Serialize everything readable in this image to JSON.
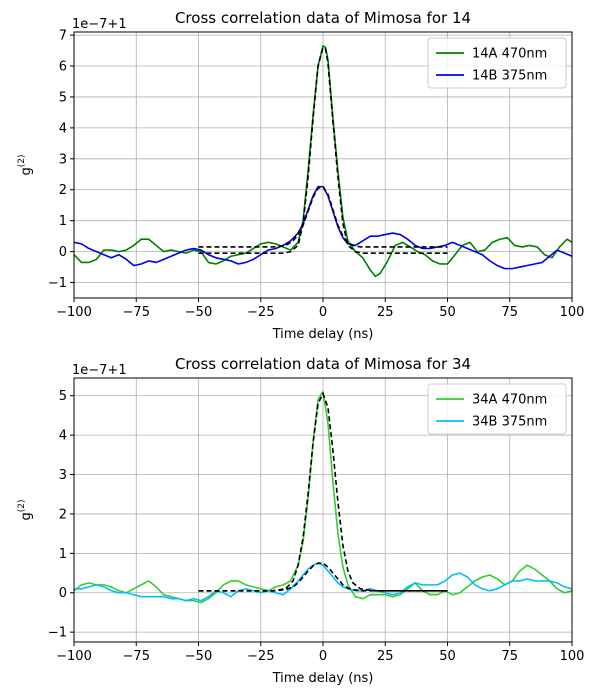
{
  "chart_data": [
    {
      "type": "line",
      "title": "Cross correlation data of Mimosa for 14",
      "xlabel": "Time delay (ns)",
      "ylabel": "g(2)",
      "offset_text": "1e−7+1",
      "xlim": [
        -100,
        100
      ],
      "ylim": [
        -1.5,
        7.1
      ],
      "xticks": [
        -100,
        -75,
        -50,
        -25,
        0,
        25,
        50,
        75,
        100
      ],
      "yticks": [
        -1,
        0,
        1,
        2,
        3,
        4,
        5,
        6,
        7
      ],
      "grid": true,
      "legend_position": "top-right",
      "series": [
        {
          "name": "14A 470nm",
          "color": "#008000",
          "x": [
            -100,
            -97,
            -94,
            -91,
            -88,
            -85,
            -82,
            -79,
            -76,
            -73,
            -70,
            -67,
            -64,
            -61,
            -58,
            -55,
            -52,
            -49,
            -46,
            -43,
            -40,
            -37,
            -34,
            -31,
            -28,
            -25,
            -22,
            -19,
            -16,
            -13,
            -10,
            -8,
            -6,
            -4,
            -2,
            0,
            1,
            2,
            4,
            6,
            8,
            10,
            13,
            16,
            19,
            21,
            23,
            26,
            29,
            32,
            35,
            38,
            41,
            44,
            47,
            50,
            53,
            56,
            59,
            62,
            65,
            68,
            71,
            74,
            77,
            80,
            83,
            86,
            89,
            92,
            95,
            98,
            100
          ],
          "y": [
            -0.1,
            -0.35,
            -0.35,
            -0.25,
            0.05,
            0.05,
            0.0,
            0.05,
            0.2,
            0.4,
            0.4,
            0.2,
            0.0,
            0.05,
            0.0,
            -0.05,
            0.05,
            0.0,
            -0.35,
            -0.4,
            -0.3,
            -0.15,
            -0.1,
            -0.05,
            0.1,
            0.25,
            0.3,
            0.25,
            0.15,
            0.05,
            0.3,
            1.0,
            2.6,
            4.4,
            6.0,
            6.65,
            6.6,
            6.2,
            4.3,
            2.6,
            1.1,
            0.35,
            0.0,
            -0.2,
            -0.6,
            -0.8,
            -0.7,
            -0.3,
            0.2,
            0.3,
            0.15,
            0.0,
            -0.1,
            -0.3,
            -0.4,
            -0.4,
            -0.1,
            0.2,
            0.3,
            0.0,
            0.05,
            0.3,
            0.4,
            0.45,
            0.2,
            0.15,
            0.2,
            0.15,
            -0.1,
            -0.2,
            0.15,
            0.4,
            0.3
          ]
        },
        {
          "name": "14B 375nm",
          "color": "#0000ee",
          "x": [
            -100,
            -97,
            -94,
            -91,
            -88,
            -85,
            -82,
            -79,
            -76,
            -73,
            -70,
            -67,
            -64,
            -61,
            -58,
            -55,
            -52,
            -49,
            -46,
            -43,
            -40,
            -37,
            -34,
            -31,
            -28,
            -25,
            -22,
            -19,
            -16,
            -13,
            -10,
            -8,
            -6,
            -4,
            -2,
            0,
            2,
            4,
            6,
            8,
            10,
            13,
            16,
            19,
            22,
            25,
            28,
            31,
            34,
            37,
            40,
            43,
            46,
            49,
            52,
            55,
            58,
            61,
            64,
            67,
            70,
            73,
            76,
            79,
            82,
            85,
            88,
            91,
            94,
            97,
            100
          ],
          "y": [
            0.3,
            0.25,
            0.1,
            0.0,
            -0.1,
            -0.2,
            -0.1,
            -0.25,
            -0.45,
            -0.4,
            -0.3,
            -0.35,
            -0.25,
            -0.15,
            -0.05,
            0.05,
            0.1,
            0.05,
            -0.1,
            -0.2,
            -0.25,
            -0.3,
            -0.4,
            -0.35,
            -0.25,
            -0.1,
            0.05,
            0.1,
            0.2,
            0.35,
            0.6,
            0.9,
            1.35,
            1.8,
            2.1,
            2.1,
            1.8,
            1.3,
            0.8,
            0.45,
            0.25,
            0.2,
            0.35,
            0.5,
            0.5,
            0.55,
            0.6,
            0.55,
            0.4,
            0.2,
            0.1,
            0.1,
            0.15,
            0.2,
            0.3,
            0.2,
            0.1,
            0.0,
            -0.1,
            -0.3,
            -0.45,
            -0.55,
            -0.55,
            -0.5,
            -0.45,
            -0.4,
            -0.35,
            -0.15,
            0.05,
            -0.05,
            -0.15
          ]
        }
      ],
      "fit_lines": [
        {
          "color": "#000000",
          "dash": true,
          "x": [
            -50,
            -20,
            -16,
            -13,
            -10,
            -8,
            -6,
            -4,
            -2,
            0,
            1,
            2,
            4,
            6,
            8,
            10,
            13,
            16,
            20,
            50
          ],
          "y": [
            -0.05,
            -0.05,
            -0.05,
            0.0,
            0.2,
            0.9,
            2.4,
            4.3,
            6.0,
            6.6,
            6.55,
            6.1,
            4.2,
            2.4,
            0.9,
            0.2,
            0.0,
            -0.05,
            -0.05,
            -0.05
          ]
        },
        {
          "color": "#000000",
          "dash": true,
          "x": [
            -50,
            -20,
            -15,
            -12,
            -10,
            -8,
            -6,
            -4,
            -2,
            0,
            2,
            4,
            6,
            8,
            10,
            12,
            15,
            20,
            50
          ],
          "y": [
            0.15,
            0.15,
            0.2,
            0.35,
            0.55,
            0.85,
            1.3,
            1.75,
            2.05,
            2.1,
            1.85,
            1.35,
            0.85,
            0.5,
            0.3,
            0.2,
            0.15,
            0.15,
            0.15
          ]
        }
      ]
    },
    {
      "type": "line",
      "title": "Cross correlation data of Mimosa for 34",
      "xlabel": "Time delay (ns)",
      "ylabel": "g(2)",
      "offset_text": "1e−7+1",
      "xlim": [
        -100,
        100
      ],
      "ylim": [
        -1.25,
        5.45
      ],
      "xticks": [
        -100,
        -75,
        -50,
        -25,
        0,
        25,
        50,
        75,
        100
      ],
      "yticks": [
        -1,
        0,
        1,
        2,
        3,
        4,
        5
      ],
      "grid": true,
      "legend_position": "top-right",
      "series": [
        {
          "name": "34A 470nm",
          "color": "#32cd32",
          "x": [
            -100,
            -97,
            -94,
            -91,
            -88,
            -85,
            -82,
            -79,
            -76,
            -73,
            -70,
            -67,
            -64,
            -61,
            -58,
            -55,
            -52,
            -49,
            -46,
            -43,
            -40,
            -37,
            -34,
            -31,
            -28,
            -25,
            -22,
            -19,
            -16,
            -13,
            -10,
            -8,
            -6,
            -4,
            -2,
            0,
            2,
            4,
            6,
            8,
            10,
            13,
            16,
            19,
            22,
            25,
            28,
            31,
            34,
            37,
            40,
            43,
            46,
            49,
            52,
            55,
            58,
            61,
            64,
            67,
            70,
            73,
            76,
            79,
            82,
            85,
            88,
            91,
            94,
            97,
            100
          ],
          "y": [
            0.05,
            0.2,
            0.25,
            0.2,
            0.2,
            0.15,
            0.05,
            0.0,
            0.1,
            0.2,
            0.3,
            0.15,
            -0.05,
            -0.1,
            -0.15,
            -0.2,
            -0.2,
            -0.25,
            -0.15,
            0.0,
            0.2,
            0.3,
            0.3,
            0.2,
            0.15,
            0.1,
            0.05,
            0.15,
            0.2,
            0.3,
            0.7,
            1.3,
            2.4,
            3.8,
            4.9,
            5.1,
            4.3,
            2.8,
            1.5,
            0.65,
            0.2,
            -0.1,
            -0.15,
            -0.05,
            -0.05,
            -0.05,
            -0.1,
            -0.05,
            0.1,
            0.25,
            0.05,
            -0.05,
            -0.05,
            0.05,
            -0.05,
            0.0,
            0.15,
            0.3,
            0.4,
            0.45,
            0.35,
            0.2,
            0.3,
            0.55,
            0.7,
            0.6,
            0.45,
            0.3,
            0.1,
            0.0,
            0.05
          ]
        },
        {
          "name": "34B 375nm",
          "color": "#00bfff",
          "x": [
            -100,
            -97,
            -94,
            -91,
            -88,
            -85,
            -82,
            -79,
            -76,
            -73,
            -70,
            -67,
            -64,
            -61,
            -58,
            -55,
            -52,
            -49,
            -46,
            -43,
            -40,
            -37,
            -34,
            -31,
            -28,
            -25,
            -22,
            -19,
            -16,
            -13,
            -10,
            -8,
            -6,
            -4,
            -2,
            0,
            2,
            4,
            6,
            8,
            10,
            13,
            16,
            19,
            22,
            25,
            28,
            31,
            34,
            37,
            40,
            43,
            46,
            49,
            52,
            55,
            58,
            61,
            64,
            67,
            70,
            73,
            76,
            79,
            82,
            85,
            88,
            91,
            94,
            97,
            100
          ],
          "y": [
            0.1,
            0.1,
            0.15,
            0.2,
            0.15,
            0.05,
            0.0,
            0.0,
            -0.05,
            -0.1,
            -0.1,
            -0.1,
            -0.1,
            -0.15,
            -0.15,
            -0.2,
            -0.15,
            -0.2,
            -0.1,
            0.05,
            0.0,
            -0.1,
            0.05,
            0.1,
            0.05,
            0.0,
            0.05,
            0.0,
            -0.05,
            0.1,
            0.3,
            0.45,
            0.6,
            0.7,
            0.75,
            0.7,
            0.55,
            0.4,
            0.25,
            0.15,
            0.1,
            0.05,
            0.05,
            0.1,
            0.05,
            0.0,
            -0.05,
            0.0,
            0.15,
            0.25,
            0.2,
            0.2,
            0.2,
            0.3,
            0.45,
            0.5,
            0.4,
            0.2,
            0.1,
            0.05,
            0.1,
            0.2,
            0.3,
            0.3,
            0.35,
            0.3,
            0.3,
            0.3,
            0.25,
            0.15,
            0.1
          ]
        }
      ],
      "fit_lines": [
        {
          "color": "#000000",
          "dash": true,
          "x": [
            -50,
            -20,
            -15,
            -12,
            -10,
            -8,
            -6,
            -4,
            -2,
            0,
            2,
            4,
            6,
            8,
            10,
            12,
            15,
            20,
            50
          ],
          "y": [
            0.05,
            0.05,
            0.1,
            0.3,
            0.7,
            1.4,
            2.5,
            3.8,
            4.8,
            5.05,
            4.7,
            3.6,
            2.3,
            1.2,
            0.55,
            0.25,
            0.1,
            0.05,
            0.05
          ]
        },
        {
          "color": "#000000",
          "dash": true,
          "x": [
            -50,
            -20,
            -15,
            -12,
            -10,
            -8,
            -6,
            -4,
            -2,
            0,
            2,
            4,
            6,
            8,
            10,
            12,
            15,
            20,
            50
          ],
          "y": [
            0.05,
            0.05,
            0.08,
            0.15,
            0.25,
            0.4,
            0.55,
            0.68,
            0.75,
            0.75,
            0.65,
            0.5,
            0.35,
            0.2,
            0.12,
            0.08,
            0.05,
            0.05,
            0.05
          ]
        }
      ]
    }
  ]
}
